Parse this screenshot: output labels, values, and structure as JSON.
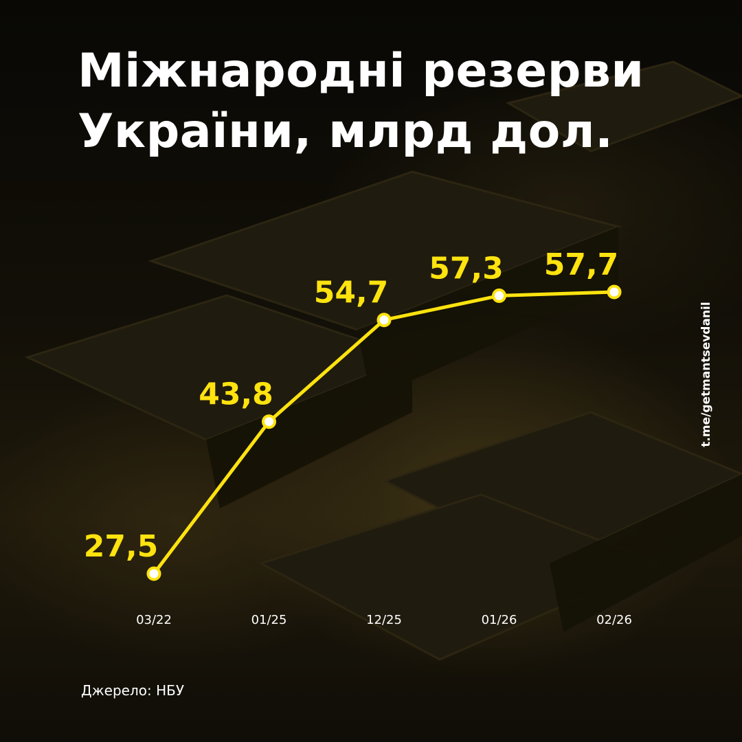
{
  "title_lines": [
    "Міжнародні резерви",
    "України, млрд дол."
  ],
  "source": "Джерело: НБУ",
  "handle": "t.me/getmantsevdanil",
  "colors": {
    "accent": "#ffe30f",
    "text": "#ffffff",
    "marker_fill": "#ffffff"
  },
  "chart_data": {
    "type": "line",
    "title": "Міжнародні резерви України, млрд дол.",
    "categories": [
      "03/22",
      "01/25",
      "12/25",
      "01/26",
      "02/26"
    ],
    "series": [
      {
        "values": [
          27.5,
          43.8,
          54.7,
          57.3,
          57.7
        ]
      }
    ],
    "data_labels": [
      "27,5",
      "43,8",
      "54,7",
      "57,3",
      "57,7"
    ],
    "grid": false,
    "legend": "none"
  }
}
